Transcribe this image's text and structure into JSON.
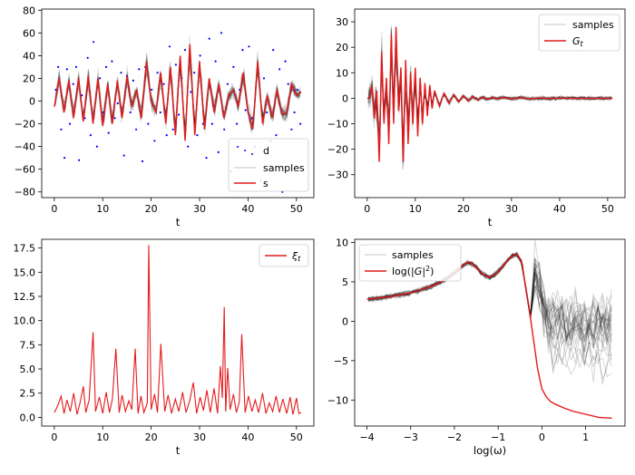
{
  "colors": {
    "data": "#0000ff",
    "samples": "#000000",
    "model": "#e41a1c",
    "frame": "#000000"
  },
  "chart_data": [
    {
      "type": "line",
      "id": "p1",
      "xlabel": "t",
      "xlim": [
        -2.6,
        53.6
      ],
      "ylim": [
        -85,
        81
      ],
      "xticks": [
        0,
        10,
        20,
        30,
        40,
        50
      ],
      "xtick_labels": [
        "0",
        "10",
        "20",
        "30",
        "40",
        "50"
      ],
      "yticks": [
        -80,
        -60,
        -40,
        -20,
        0,
        20,
        40,
        60,
        80
      ],
      "ytick_labels": [
        "−80",
        "−60",
        "−40",
        "−20",
        "0",
        "20",
        "40",
        "60",
        "80"
      ],
      "legend_position": "lower-right",
      "legend": [
        "d",
        "samples",
        "s"
      ],
      "series": [
        {
          "name": "s",
          "x": [
            0,
            1,
            2,
            3,
            4,
            5,
            6,
            7,
            8,
            9,
            10,
            11,
            12,
            13,
            14,
            15,
            16,
            17,
            18,
            19,
            20,
            21,
            22,
            23,
            24,
            25,
            26,
            27,
            28,
            29,
            30,
            31,
            32,
            33,
            34,
            35,
            36,
            37,
            38,
            39,
            40,
            41,
            42,
            43,
            44,
            45,
            46,
            47,
            48,
            49,
            50,
            51
          ],
          "y": [
            -5,
            20,
            -10,
            18,
            -15,
            20,
            -18,
            22,
            -20,
            20,
            -22,
            15,
            -20,
            18,
            -15,
            22,
            -5,
            10,
            -15,
            35,
            0,
            -10,
            25,
            -20,
            30,
            -30,
            40,
            -35,
            50,
            -30,
            35,
            -25,
            20,
            -10,
            15,
            -15,
            5,
            10,
            -5,
            25,
            -10,
            -25,
            35,
            -20,
            5,
            -15,
            10,
            -12,
            -10,
            15,
            5,
            8
          ]
        },
        {
          "name": "d",
          "x": [
            0.3,
            0.8,
            1.4,
            2.1,
            2.6,
            3.2,
            3.9,
            4.5,
            5.1,
            5.7,
            6.3,
            6.9,
            7.5,
            8.1,
            8.8,
            9.4,
            10.1,
            10.7,
            11.2,
            11.9,
            12.5,
            13.1,
            13.8,
            14.4,
            15,
            15.7,
            16.3,
            16.9,
            17.5,
            18.2,
            18.8,
            19.4,
            20.1,
            20.7,
            21.3,
            21.9,
            22.6,
            23.2,
            23.8,
            24.5,
            25.1,
            25.7,
            26.3,
            27,
            27.6,
            28.2,
            28.9,
            29.5,
            30.1,
            30.7,
            31.4,
            32,
            32.6,
            33.3,
            33.9,
            34.5,
            35.1,
            35.8,
            36.4,
            37,
            37.7,
            38.3,
            38.9,
            39.5,
            40.2,
            40.8,
            41.4,
            42.1,
            42.7,
            43.3,
            43.9,
            44.6,
            45.2,
            45.8,
            46.5,
            47.1,
            47.7,
            48.3,
            49,
            49.6,
            50.2,
            50.8
          ],
          "y": [
            10,
            30,
            -25,
            -50,
            28,
            -20,
            15,
            30,
            -52,
            5,
            -15,
            38,
            -30,
            52,
            -40,
            20,
            -10,
            30,
            -28,
            35,
            -15,
            -2,
            25,
            -48,
            22,
            -10,
            18,
            -25,
            28,
            -53,
            30,
            -20,
            10,
            -35,
            25,
            -10,
            15,
            -30,
            48,
            -25,
            32,
            -12,
            20,
            45,
            -40,
            8,
            25,
            -30,
            40,
            -20,
            -50,
            55,
            -20,
            35,
            -45,
            60,
            -25,
            15,
            -62,
            30,
            -20,
            10,
            45,
            -8,
            48,
            -15,
            -40,
            28,
            -70,
            20,
            -10,
            -35,
            45,
            -30,
            28,
            -80,
            35,
            15,
            -25,
            -10,
            10,
            -20
          ]
        }
      ]
    },
    {
      "type": "line",
      "id": "p2",
      "xlabel": "t",
      "xlim": [
        -2.6,
        53.6
      ],
      "ylim": [
        -39,
        35
      ],
      "xticks": [
        0,
        10,
        20,
        30,
        40,
        50
      ],
      "xtick_labels": [
        "0",
        "10",
        "20",
        "30",
        "40",
        "50"
      ],
      "yticks": [
        -30,
        -20,
        -10,
        0,
        10,
        20,
        30
      ],
      "ytick_labels": [
        "−30",
        "−20",
        "−10",
        "0",
        "10",
        "20",
        "30"
      ],
      "legend_position": "upper-right",
      "legend": [
        "samples",
        "G_t"
      ],
      "series": [
        {
          "name": "G_t",
          "x": [
            0,
            0.5,
            1,
            1.5,
            2,
            2.5,
            3,
            3.5,
            4,
            4.5,
            5,
            5.5,
            6,
            6.5,
            7,
            7.5,
            8,
            8.5,
            9,
            9.5,
            10,
            10.5,
            11,
            11.5,
            12,
            12.5,
            13,
            13.5,
            14,
            15,
            16,
            17,
            18,
            19,
            20,
            21,
            22,
            23,
            24,
            25,
            26,
            27,
            28,
            30,
            32,
            34,
            36,
            38,
            40,
            42,
            44,
            46,
            48,
            50,
            51
          ],
          "y": [
            0,
            0,
            5,
            -8,
            3,
            -25,
            18,
            -10,
            8,
            -18,
            25,
            -10,
            28,
            -5,
            12,
            -25,
            15,
            -18,
            10,
            -10,
            12,
            -15,
            8,
            -10,
            6,
            -7,
            5,
            -4,
            3,
            -3,
            2,
            -2,
            1.5,
            -1.5,
            1,
            -1,
            0.7,
            -0.7,
            0.5,
            -0.5,
            0.4,
            -0.3,
            0.3,
            -0.2,
            0.2,
            -0.2,
            0.1,
            -0.1,
            0.1,
            0,
            0,
            0,
            0,
            0,
            0
          ]
        }
      ]
    },
    {
      "type": "line",
      "id": "p3",
      "xlabel": "t",
      "xlim": [
        -2.6,
        53.6
      ],
      "ylim": [
        -0.9,
        18.4
      ],
      "xticks": [
        0,
        10,
        20,
        30,
        40,
        50
      ],
      "xtick_labels": [
        "0",
        "10",
        "20",
        "30",
        "40",
        "50"
      ],
      "yticks": [
        0.0,
        2.5,
        5.0,
        7.5,
        10.0,
        12.5,
        15.0,
        17.5
      ],
      "ytick_labels": [
        "0.0",
        "2.5",
        "5.0",
        "7.5",
        "10.0",
        "12.5",
        "15.0",
        "17.5"
      ],
      "legend_position": "upper-right",
      "legend": [
        "ξ_t"
      ],
      "series": [
        {
          "name": "ξ_t",
          "x": [
            0,
            0.7,
            1.4,
            2,
            2.6,
            3.3,
            4,
            4.7,
            5.3,
            6,
            6.5,
            7.2,
            8,
            8.5,
            9.3,
            10,
            10.7,
            11.4,
            12,
            12.7,
            13.4,
            14,
            14.7,
            15.4,
            16,
            16.7,
            17.3,
            17.9,
            18.5,
            19.2,
            19.5,
            20,
            20.7,
            21.3,
            22,
            22.8,
            23.5,
            24.2,
            25,
            25.7,
            26.5,
            27.2,
            28,
            28.7,
            29.4,
            30.1,
            30.8,
            31.5,
            32.2,
            33,
            33.7,
            34.3,
            34.7,
            35.1,
            35.4,
            35.8,
            36.3,
            37,
            37.6,
            38.2,
            38.7,
            39.4,
            40.1,
            40.8,
            41.5,
            42.2,
            43,
            43.7,
            44.4,
            45.1,
            45.8,
            46.5,
            47.2,
            48,
            48.7,
            49.3,
            50,
            50.5,
            51
          ],
          "y": [
            0.5,
            1.2,
            2.2,
            0.4,
            1.8,
            0.6,
            2.5,
            0.3,
            1.5,
            3.2,
            0.5,
            1.8,
            8.8,
            0.6,
            2.1,
            0.4,
            2.6,
            0.5,
            1.9,
            7.1,
            0.5,
            2.3,
            0.6,
            1.7,
            0.8,
            7.1,
            0.4,
            2.2,
            0.5,
            1.5,
            17.8,
            0.8,
            2.4,
            0.5,
            7.6,
            0.6,
            2.3,
            0.4,
            1.9,
            0.6,
            2.6,
            0.5,
            1.8,
            3.6,
            0.4,
            2.1,
            0.7,
            2.8,
            0.5,
            3.0,
            0.4,
            5.3,
            2.0,
            11.4,
            0.6,
            5.1,
            0.8,
            2.4,
            0.5,
            1.6,
            8.6,
            0.5,
            2.2,
            0.6,
            1.8,
            0.5,
            2.5,
            0.4,
            1.5,
            0.6,
            2.2,
            0.5,
            1.9,
            0.4,
            2.1,
            0.3,
            2.0,
            0.4,
            0.5
          ]
        }
      ]
    },
    {
      "type": "line",
      "id": "p4",
      "xlabel": "log(ω)",
      "xlim": [
        -4.28,
        1.9
      ],
      "ylim": [
        -13.3,
        10.4
      ],
      "xticks": [
        -4,
        -3,
        -2,
        -1,
        0,
        1
      ],
      "xtick_labels": [
        "−4",
        "−3",
        "−2",
        "−1",
        "0",
        "1"
      ],
      "yticks": [
        -10,
        -5,
        0,
        5,
        10
      ],
      "ytick_labels": [
        "−10",
        "−5",
        "0",
        "5",
        "10"
      ],
      "legend_position": "upper-left",
      "legend": [
        "samples",
        "log(|G|²)"
      ],
      "series": [
        {
          "name": "log(|G|²)",
          "x": [
            -4,
            -3.5,
            -3,
            -2.5,
            -2.2,
            -1.9,
            -1.8,
            -1.7,
            -1.65,
            -1.5,
            -1.4,
            -1.3,
            -1.2,
            -1.05,
            -0.9,
            -0.8,
            -0.7,
            -0.6,
            -0.55,
            -0.45,
            -0.4,
            -0.3,
            -0.2,
            -0.1,
            0,
            0.1,
            0.2,
            0.3,
            0.5,
            0.7,
            1,
            1.3,
            1.6
          ],
          "y": [
            2.8,
            3.1,
            3.6,
            4.5,
            5.3,
            6.6,
            7.1,
            7.5,
            7.5,
            6.8,
            6.2,
            5.8,
            5.6,
            6,
            7,
            7.6,
            8.2,
            8.5,
            8.4,
            7.3,
            5.3,
            2,
            -2,
            -6,
            -8.6,
            -9.6,
            -10.2,
            -10.5,
            -11,
            -11.4,
            -11.8,
            -12.2,
            -12.3
          ]
        }
      ]
    }
  ]
}
